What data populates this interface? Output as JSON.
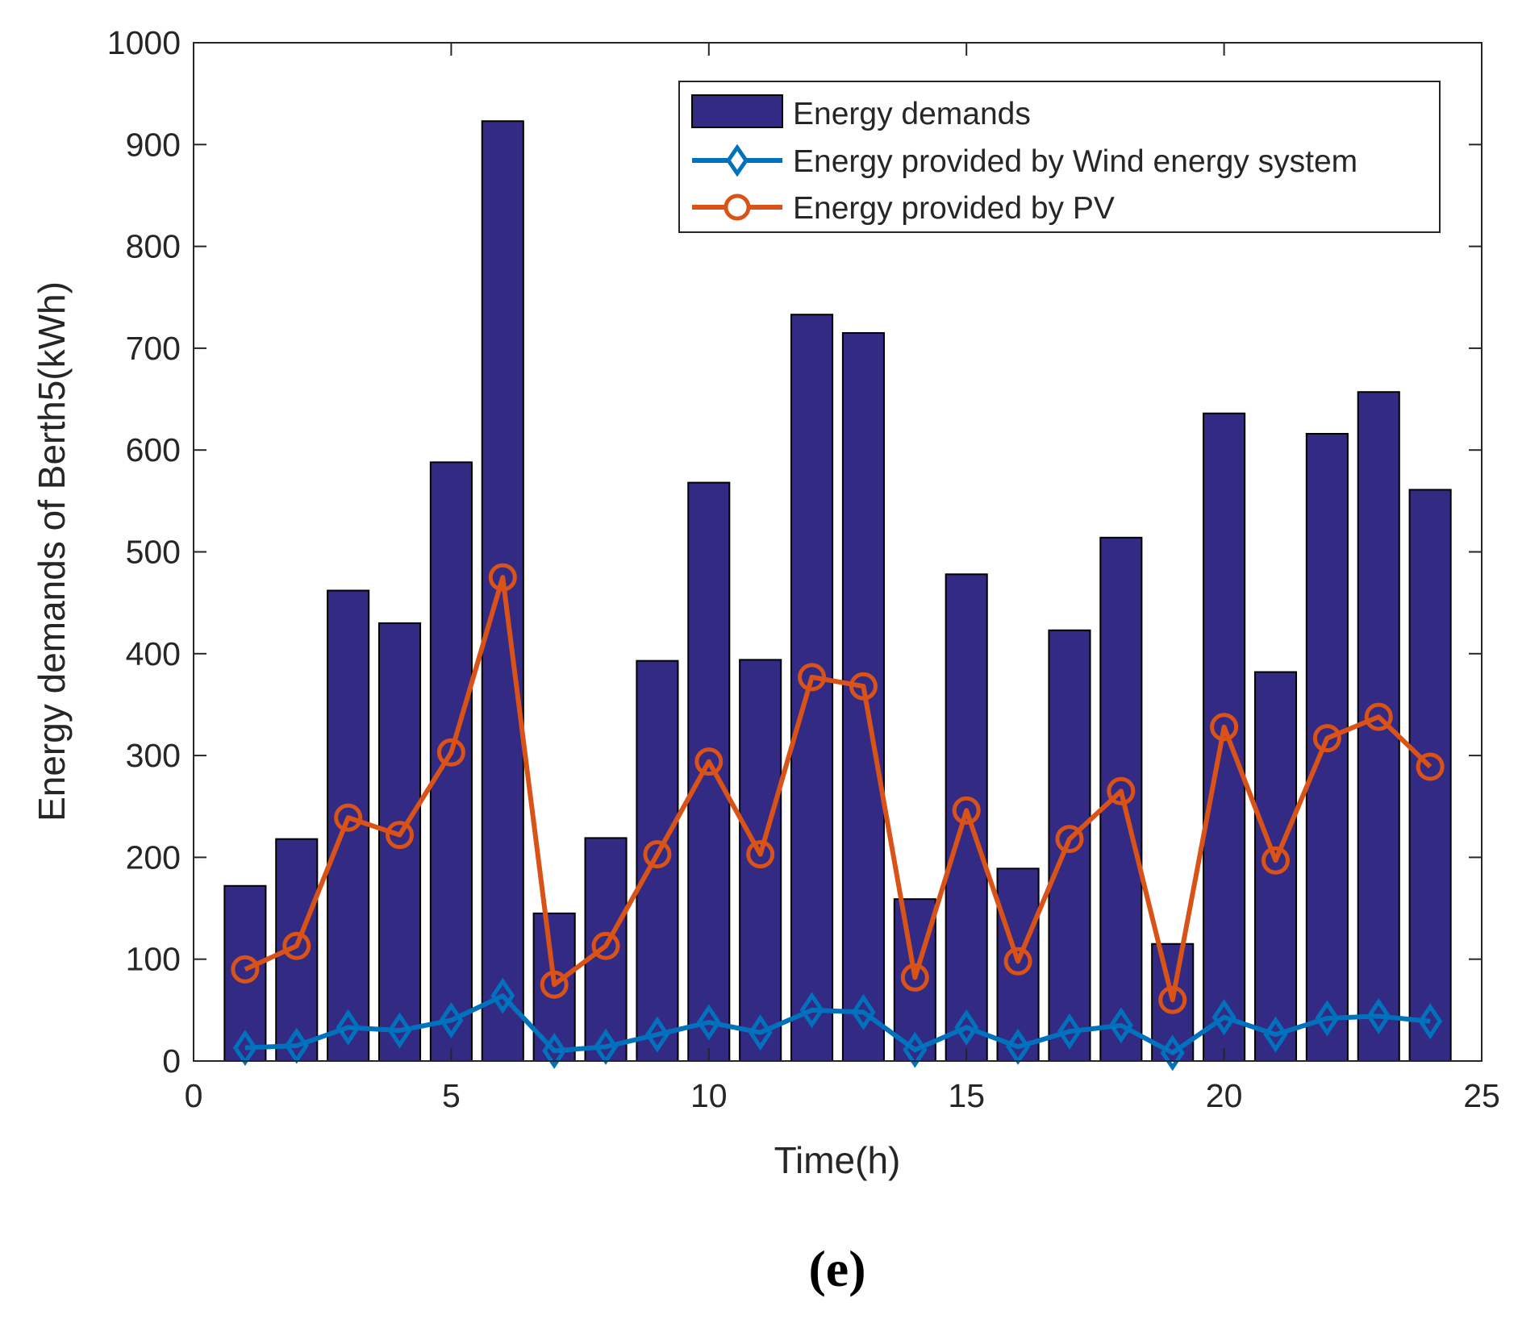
{
  "chart_data": {
    "type": "bar",
    "xlabel": "Time(h)",
    "ylabel": "Energy demands of Berth5(kWh)",
    "xlim": [
      0,
      25
    ],
    "ylim": [
      0,
      1000
    ],
    "xticks": [
      0,
      5,
      10,
      15,
      20,
      25
    ],
    "yticks": [
      0,
      100,
      200,
      300,
      400,
      500,
      600,
      700,
      800,
      900,
      1000
    ],
    "grid": false,
    "legend_position": "top-right",
    "panel_label": "(e)",
    "x": [
      1,
      2,
      3,
      4,
      5,
      6,
      7,
      8,
      9,
      10,
      11,
      12,
      13,
      14,
      15,
      16,
      17,
      18,
      19,
      20,
      21,
      22,
      23,
      24
    ],
    "series": [
      {
        "name": "Energy demands",
        "kind": "bar",
        "color": "#332A84",
        "values": [
          172,
          218,
          462,
          430,
          588,
          923,
          145,
          219,
          393,
          568,
          394,
          733,
          715,
          159,
          478,
          189,
          423,
          514,
          115,
          636,
          382,
          616,
          657,
          561
        ]
      },
      {
        "name": "Energy provided by Wind energy system",
        "kind": "line",
        "marker": "diamond",
        "color": "#0072BD",
        "values": [
          13,
          15,
          33,
          30,
          40,
          64,
          10,
          14,
          26,
          38,
          28,
          50,
          48,
          11,
          33,
          14,
          29,
          35,
          8,
          43,
          26,
          42,
          44,
          39
        ]
      },
      {
        "name": "Energy provided by PV",
        "kind": "line",
        "marker": "circle",
        "color": "#D95319",
        "values": [
          90,
          113,
          239,
          222,
          303,
          475,
          75,
          113,
          203,
          294,
          203,
          377,
          368,
          82,
          246,
          98,
          218,
          265,
          60,
          328,
          197,
          317,
          338,
          289
        ]
      }
    ]
  }
}
